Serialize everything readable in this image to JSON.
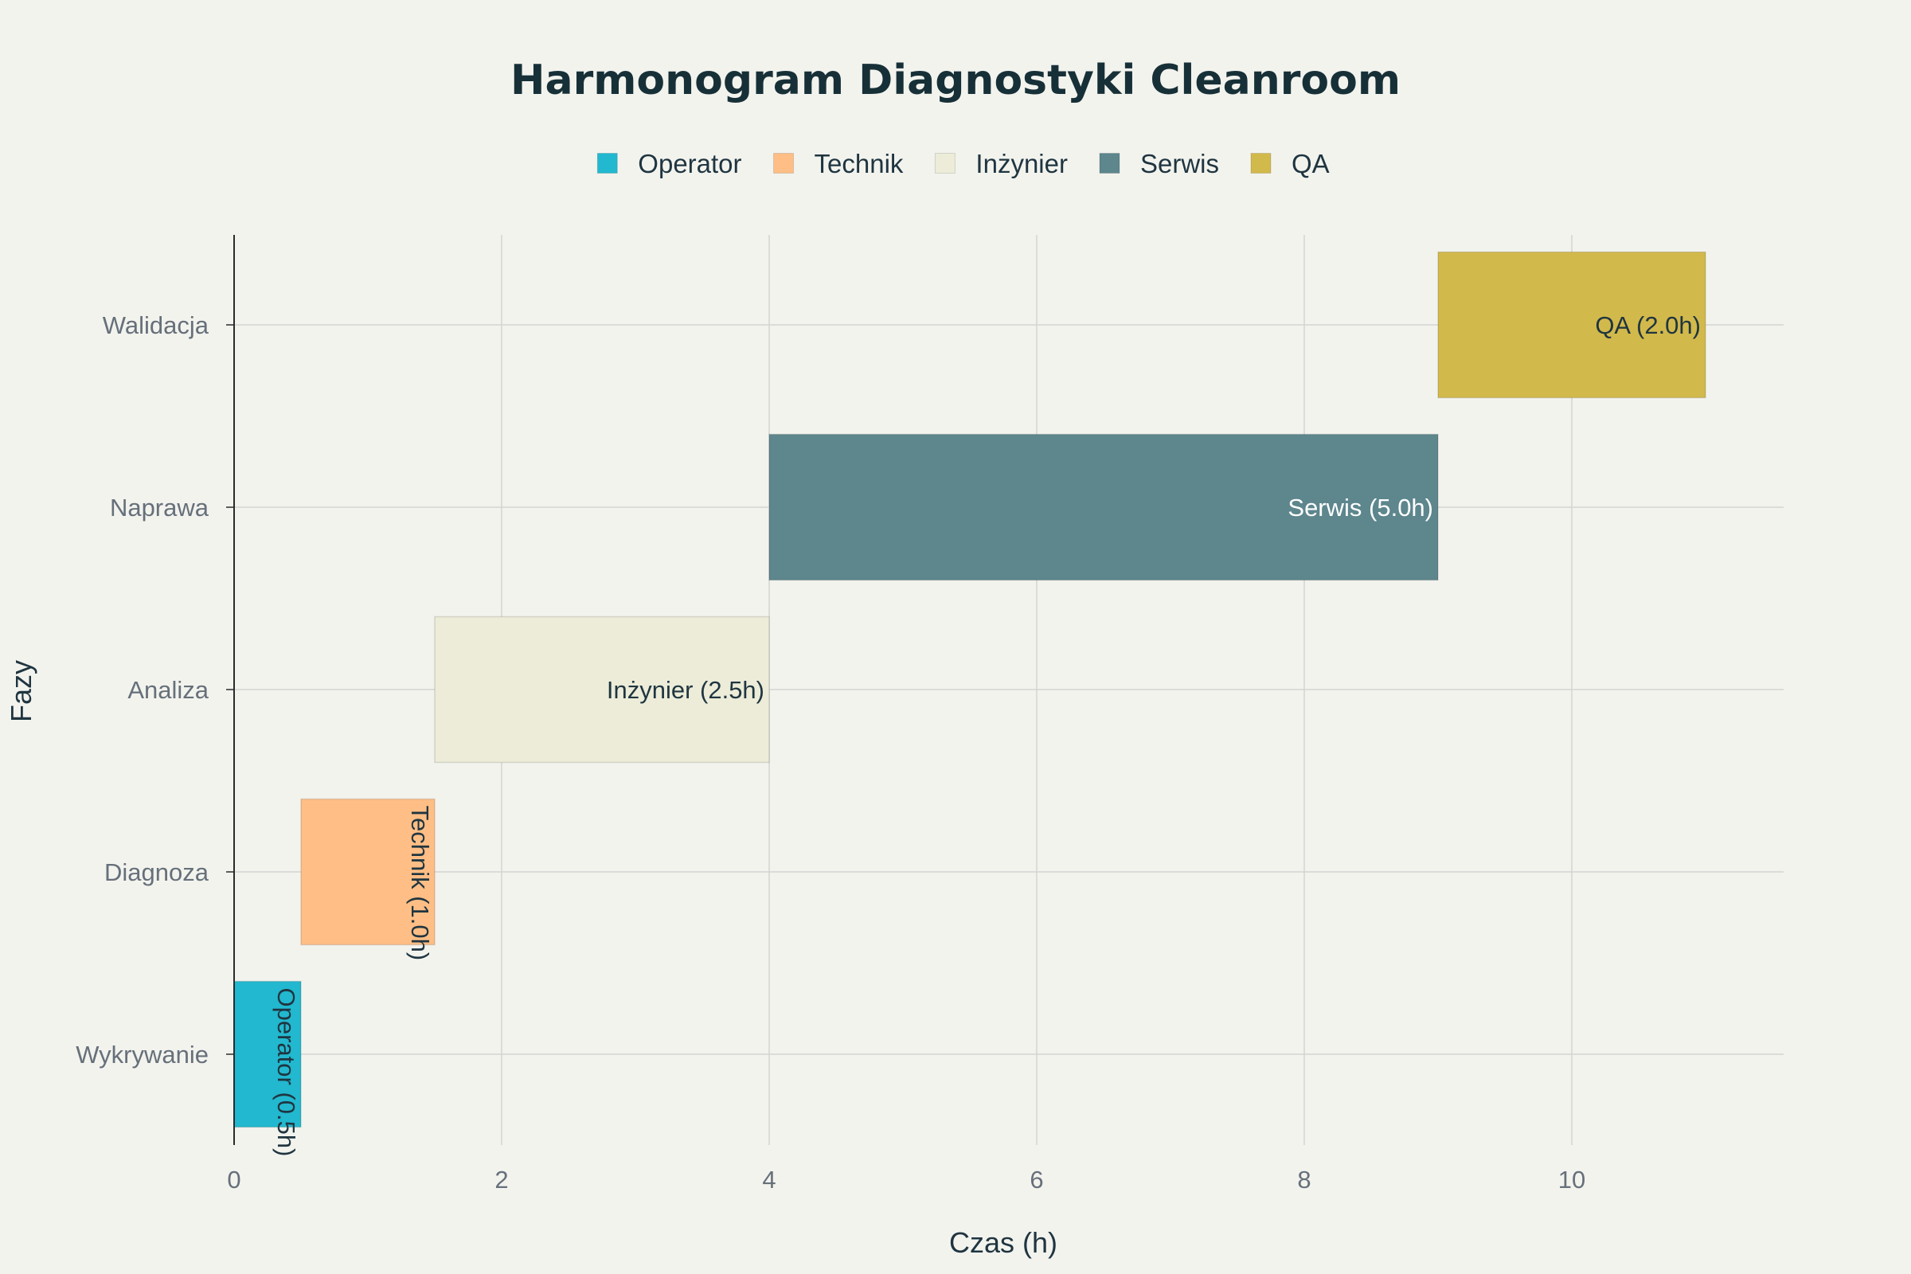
{
  "chart_data": {
    "type": "bar",
    "orientation": "horizontal-gantt",
    "title": "Harmonogram Diagnostyki Cleanroom",
    "xlabel": "Czas (h)",
    "ylabel": "Fazy",
    "xlim": [
      0,
      11.6
    ],
    "x_ticks": [
      0,
      2,
      4,
      6,
      8,
      10
    ],
    "grid": true,
    "legend_position": "top-center",
    "categories": [
      "Wykrywanie",
      "Diagnoza",
      "Analiza",
      "Naprawa",
      "Walidacja"
    ],
    "series": [
      {
        "name": "Operator",
        "category": "Wykrywanie",
        "start": 0,
        "duration": 0.5,
        "label": "Operator (0.5h)",
        "color": "#22b8cf",
        "text_color": "#1f3540"
      },
      {
        "name": "Technik",
        "category": "Diagnoza",
        "start": 0.5,
        "duration": 1.0,
        "label": "Technik (1.0h)",
        "color": "#ffbe85",
        "text_color": "#1f3540"
      },
      {
        "name": "Inżynier",
        "category": "Analiza",
        "start": 1.5,
        "duration": 2.5,
        "label": "Inżynier (2.5h)",
        "color": "#ececd8",
        "text_color": "#1f3540"
      },
      {
        "name": "Serwis",
        "category": "Naprawa",
        "start": 4.0,
        "duration": 5.0,
        "label": "Serwis (5.0h)",
        "color": "#5d868d",
        "text_color": "#ffffff"
      },
      {
        "name": "QA",
        "category": "Walidacja",
        "start": 9.0,
        "duration": 2.0,
        "label": "QA (2.0h)",
        "color": "#d2b94b",
        "text_color": "#1f3540"
      }
    ]
  }
}
